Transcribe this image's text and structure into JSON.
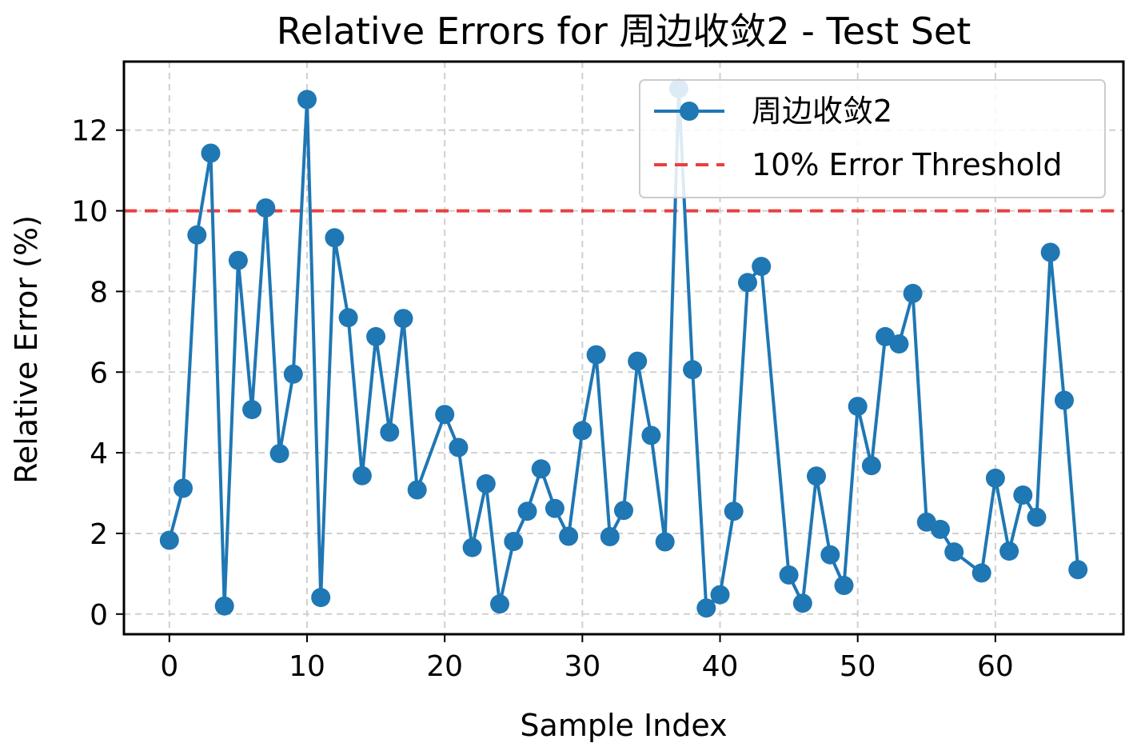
{
  "chart_data": {
    "type": "line",
    "title": "Relative Errors for 周边收敛2 - Test Set",
    "xlabel": "Sample Index",
    "ylabel": "Relative Error (%)",
    "xlim": [
      -3.3,
      69.3
    ],
    "ylim": [
      -0.5,
      13.7
    ],
    "xticks": [
      0,
      10,
      20,
      30,
      40,
      50,
      60
    ],
    "yticks": [
      0,
      2,
      4,
      6,
      8,
      10,
      12
    ],
    "grid": true,
    "legend_position": "top-right",
    "series": [
      {
        "name": "周边收敛2",
        "color": "#1f77b4",
        "marker": "circle",
        "x": [
          0,
          1,
          2,
          3,
          4,
          5,
          6,
          7,
          8,
          9,
          10,
          11,
          12,
          13,
          14,
          15,
          16,
          17,
          18,
          20,
          21,
          22,
          23,
          24,
          25,
          26,
          27,
          28,
          29,
          30,
          31,
          32,
          33,
          34,
          35,
          36,
          37,
          38,
          39,
          40,
          41,
          42,
          43,
          45,
          46,
          47,
          48,
          49,
          50,
          51,
          52,
          53,
          54,
          55,
          56,
          57,
          59,
          60,
          61,
          62,
          63,
          64,
          65,
          66
        ],
        "y": [
          1.83,
          3.12,
          9.4,
          11.43,
          0.2,
          8.77,
          5.07,
          10.07,
          3.98,
          5.95,
          12.76,
          0.41,
          9.33,
          7.35,
          3.43,
          6.88,
          4.51,
          7.33,
          3.08,
          4.95,
          4.13,
          1.65,
          3.23,
          0.25,
          1.8,
          2.55,
          3.6,
          2.62,
          1.93,
          4.55,
          6.43,
          1.92,
          2.57,
          6.27,
          4.43,
          1.79,
          13.03,
          6.06,
          0.15,
          0.48,
          2.55,
          8.22,
          8.62,
          0.97,
          0.27,
          3.42,
          1.47,
          0.71,
          5.15,
          3.68,
          6.88,
          6.7,
          7.95,
          2.28,
          2.1,
          1.54,
          1.02,
          3.37,
          1.56,
          2.95,
          2.4,
          8.97,
          5.3,
          1.1
        ]
      }
    ],
    "threshold": {
      "name": "10% Error Threshold",
      "value": 10,
      "color": "#e84040",
      "style": "dashed"
    }
  }
}
